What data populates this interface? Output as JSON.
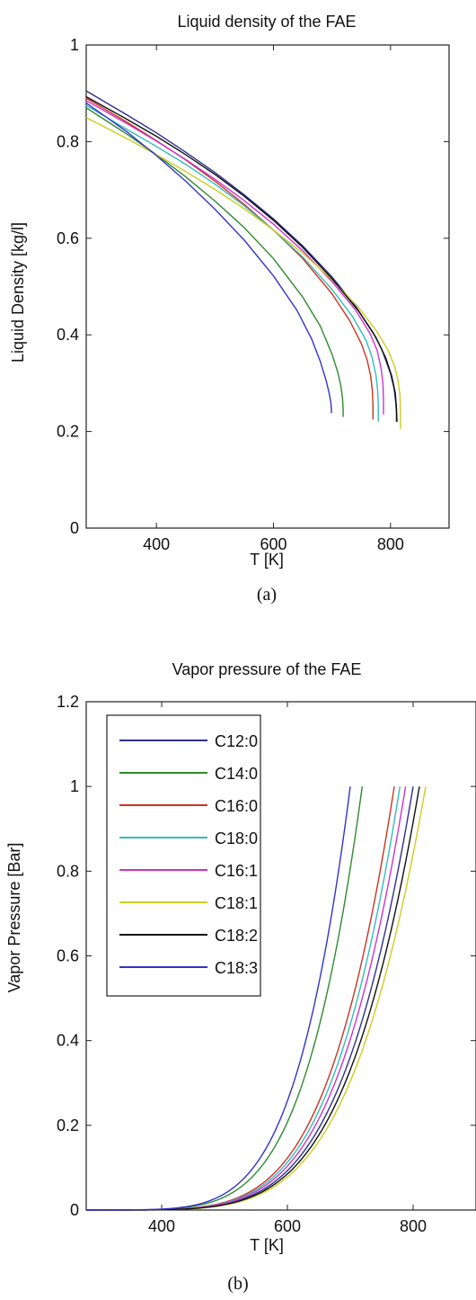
{
  "captions": [
    "(a)",
    "(b)"
  ],
  "chart_data": [
    {
      "type": "line",
      "title": "Liquid density of the FAE",
      "xlabel": "T [K]",
      "ylabel": "Liquid Density [kg/l]",
      "xlim": [
        280,
        900
      ],
      "ylim": [
        0,
        1
      ],
      "xticks": [
        400,
        600,
        800
      ],
      "yticks": [
        0,
        0.2,
        0.4,
        0.6,
        0.8,
        1
      ],
      "ytick_labels": [
        "0",
        "0.2",
        "0.4",
        "0.6",
        "0.8",
        "1"
      ],
      "grid": false,
      "series": [
        {
          "color": "#2f2f8f",
          "x": [
            280,
            350,
            400,
            450,
            500,
            550,
            600,
            650,
            700,
            740,
            770,
            785,
            800,
            806,
            809,
            810,
            810
          ],
          "y": [
            0.905,
            0.855,
            0.818,
            0.778,
            0.736,
            0.69,
            0.64,
            0.584,
            0.52,
            0.46,
            0.405,
            0.37,
            0.32,
            0.29,
            0.26,
            0.24,
            0.22
          ]
        },
        {
          "color": "#2e8b2e",
          "x": [
            280,
            350,
            400,
            450,
            500,
            550,
            600,
            650,
            680,
            700,
            710,
            715,
            718,
            719,
            719
          ],
          "y": [
            0.87,
            0.815,
            0.773,
            0.727,
            0.677,
            0.622,
            0.558,
            0.478,
            0.418,
            0.36,
            0.322,
            0.295,
            0.268,
            0.245,
            0.23
          ]
        },
        {
          "color": "#cc3322",
          "x": [
            280,
            350,
            400,
            450,
            500,
            550,
            600,
            650,
            700,
            730,
            750,
            760,
            766,
            769,
            770,
            770
          ],
          "y": [
            0.89,
            0.84,
            0.802,
            0.762,
            0.718,
            0.67,
            0.617,
            0.558,
            0.485,
            0.43,
            0.382,
            0.348,
            0.315,
            0.285,
            0.255,
            0.225
          ]
        },
        {
          "color": "#33bbbb",
          "x": [
            280,
            350,
            400,
            450,
            500,
            550,
            600,
            650,
            700,
            735,
            758,
            768,
            775,
            778,
            779,
            779
          ],
          "y": [
            0.875,
            0.825,
            0.79,
            0.753,
            0.712,
            0.667,
            0.617,
            0.561,
            0.494,
            0.438,
            0.389,
            0.355,
            0.318,
            0.285,
            0.255,
            0.22
          ]
        },
        {
          "color": "#cc33cc",
          "x": [
            280,
            350,
            400,
            450,
            500,
            550,
            600,
            650,
            700,
            740,
            765,
            777,
            784,
            787,
            788,
            788
          ],
          "y": [
            0.885,
            0.837,
            0.801,
            0.763,
            0.722,
            0.678,
            0.629,
            0.574,
            0.51,
            0.452,
            0.403,
            0.368,
            0.33,
            0.298,
            0.265,
            0.235
          ]
        },
        {
          "color": "#cccc22",
          "x": [
            280,
            350,
            400,
            450,
            500,
            550,
            600,
            650,
            700,
            745,
            775,
            795,
            807,
            813,
            816,
            817,
            817
          ],
          "y": [
            0.85,
            0.806,
            0.773,
            0.738,
            0.701,
            0.661,
            0.617,
            0.569,
            0.514,
            0.457,
            0.41,
            0.37,
            0.335,
            0.305,
            0.275,
            0.24,
            0.205
          ]
        },
        {
          "color": "#111111",
          "x": [
            280,
            350,
            400,
            450,
            500,
            550,
            600,
            650,
            700,
            745,
            775,
            792,
            802,
            808,
            810,
            811
          ],
          "y": [
            0.893,
            0.846,
            0.811,
            0.773,
            0.732,
            0.687,
            0.637,
            0.581,
            0.516,
            0.45,
            0.395,
            0.352,
            0.315,
            0.28,
            0.25,
            0.22
          ]
        },
        {
          "color": "#3333cc",
          "x": [
            280,
            350,
            400,
            450,
            500,
            550,
            600,
            640,
            665,
            680,
            690,
            695,
            698,
            699,
            699
          ],
          "y": [
            0.88,
            0.82,
            0.771,
            0.718,
            0.66,
            0.596,
            0.522,
            0.451,
            0.392,
            0.345,
            0.305,
            0.28,
            0.26,
            0.245,
            0.238
          ]
        }
      ]
    },
    {
      "type": "line",
      "title": "Vapor pressure of the FAE",
      "xlabel": "T [K]",
      "ylabel": "Vapor Pressure [Bar]",
      "xlim": [
        280,
        900
      ],
      "ylim": [
        0,
        1.2
      ],
      "xticks": [
        400,
        600,
        800
      ],
      "yticks": [
        0,
        0.2,
        0.4,
        0.6,
        0.8,
        1,
        1.2
      ],
      "ytick_labels": [
        "0",
        "0.2",
        "0.4",
        "0.6",
        "0.8",
        "1",
        "1.2"
      ],
      "grid": false,
      "legend": "top-left",
      "series": [
        {
          "name": "C12:0",
          "color": "#2f2f8f",
          "Tb": 800
        },
        {
          "name": "C14:0",
          "color": "#2e8b2e",
          "Tb": 719
        },
        {
          "name": "C16:0",
          "color": "#cc3322",
          "Tb": 770
        },
        {
          "name": "C18:0",
          "color": "#33bbbb",
          "Tb": 779
        },
        {
          "name": "C16:1",
          "color": "#cc33cc",
          "Tb": 788
        },
        {
          "name": "C18:1",
          "color": "#cccc22",
          "Tb": 820
        },
        {
          "name": "C18:2",
          "color": "#111111",
          "Tb": 810
        },
        {
          "name": "C18:3",
          "color": "#3333cc",
          "Tb": 700
        }
      ]
    }
  ]
}
